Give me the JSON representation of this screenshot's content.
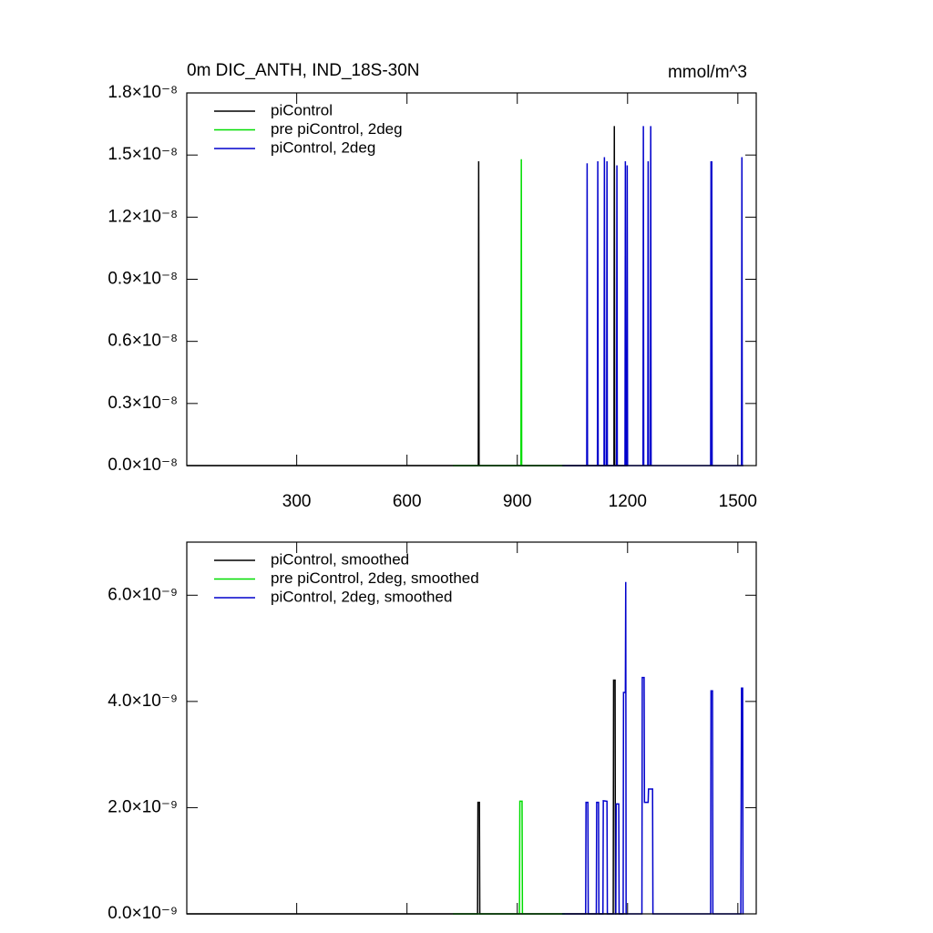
{
  "chart_data": [
    {
      "type": "line",
      "title": "0m DIC_ANTH, IND_18S-30N",
      "units": "mmol/m^3",
      "xlim": [
        1,
        1550
      ],
      "xticks": [
        300,
        600,
        900,
        1200,
        1500
      ],
      "ylim": [
        0,
        1.8e-08
      ],
      "yticks": [
        {
          "value": 0,
          "label": "0.0×10⁻⁸"
        },
        {
          "value": 3e-09,
          "label": "0.3×10⁻⁸"
        },
        {
          "value": 6e-09,
          "label": "0.6×10⁻⁸"
        },
        {
          "value": 9e-09,
          "label": "0.9×10⁻⁸"
        },
        {
          "value": 1.2e-08,
          "label": "1.2×10⁻⁸"
        },
        {
          "value": 1.5e-08,
          "label": "1.5×10⁻⁸"
        },
        {
          "value": 1.8e-08,
          "label": "1.8×10⁻⁸"
        }
      ],
      "series": [
        {
          "name": "piControl",
          "color": "#000000",
          "x": [
            1,
            794,
            795,
            796,
            1163,
            1164,
            1165,
            1200
          ],
          "values": [
            0,
            0,
            1.47e-08,
            0,
            0,
            1.64e-08,
            0,
            0
          ]
        },
        {
          "name": "pre piControl, 2deg",
          "color": "#00dd00",
          "x": [
            725,
            910,
            911,
            912,
            1030
          ],
          "values": [
            0,
            0,
            1.48e-08,
            0,
            0
          ]
        },
        {
          "name": "piControl, 2deg",
          "color": "#0000cc",
          "x": [
            1022,
            1089,
            1090,
            1091,
            1118,
            1119,
            1120,
            1136,
            1137,
            1138,
            1143,
            1144,
            1145,
            1170,
            1171,
            1172,
            1193,
            1194,
            1195,
            1198,
            1199,
            1200,
            1242,
            1243,
            1244,
            1255,
            1256,
            1257,
            1262,
            1263,
            1264,
            1426,
            1427,
            1428,
            1429,
            1430,
            1510,
            1511,
            1512,
            1515
          ],
          "values": [
            0,
            0,
            1.46e-08,
            0,
            0,
            1.47e-08,
            0,
            0,
            1.49e-08,
            0,
            0,
            1.47e-08,
            0,
            0,
            1.45e-08,
            0,
            0,
            1.47e-08,
            0,
            0,
            1.45e-08,
            0,
            0,
            1.64e-08,
            0,
            0,
            1.47e-08,
            0,
            0,
            1.64e-08,
            0,
            0,
            1.47e-08,
            0,
            1.47e-08,
            0,
            0,
            1.49e-08,
            0,
            0
          ]
        }
      ]
    },
    {
      "type": "line",
      "xlim": [
        1,
        1550
      ],
      "xticks": [
        300,
        600,
        900,
        1200,
        1500
      ],
      "ylim": [
        0,
        7e-09
      ],
      "yticks": [
        {
          "value": 0,
          "label": "0.0×10⁻⁹"
        },
        {
          "value": 2e-09,
          "label": "2.0×10⁻⁹"
        },
        {
          "value": 4e-09,
          "label": "4.0×10⁻⁹"
        },
        {
          "value": 6e-09,
          "label": "6.0×10⁻⁹"
        }
      ],
      "series": [
        {
          "name": "piControl, smoothed",
          "color": "#000000",
          "x": [
            1,
            792,
            793,
            797,
            798,
            1161,
            1162,
            1166,
            1167,
            1200
          ],
          "values": [
            0,
            0,
            2.1e-09,
            2.1e-09,
            0,
            0,
            4.4e-09,
            4.4e-09,
            0,
            0
          ]
        },
        {
          "name": "pre piControl, 2deg, smoothed",
          "color": "#00dd00",
          "x": [
            725,
            906,
            907,
            913,
            914,
            1030
          ],
          "values": [
            0,
            0,
            2.12e-09,
            2.12e-09,
            0,
            0
          ]
        },
        {
          "name": "piControl, 2deg, smoothed",
          "color": "#0000cc",
          "x": [
            1022,
            1086,
            1087,
            1092,
            1093,
            1115,
            1116,
            1121,
            1122,
            1133,
            1134,
            1144,
            1145,
            1168,
            1169,
            1176,
            1177,
            1188,
            1189,
            1194,
            1195,
            1196,
            1239,
            1240,
            1245,
            1246,
            1256,
            1257,
            1268,
            1269,
            1426,
            1427,
            1431,
            1432,
            1508,
            1509,
            1510,
            1513,
            1514,
            1515
          ],
          "values": [
            0,
            0,
            2.1e-09,
            2.1e-09,
            0,
            0,
            2.1e-09,
            2.1e-09,
            0,
            0,
            2.13e-09,
            2.12e-09,
            0,
            0,
            2.07e-09,
            2.07e-09,
            0,
            0,
            4.17e-09,
            4.17e-09,
            6.25e-09,
            0,
            0,
            4.45e-09,
            4.45e-09,
            2.1e-09,
            2.1e-09,
            2.35e-09,
            2.35e-09,
            0,
            0,
            4.2e-09,
            4.2e-09,
            0,
            0,
            2.1e-09,
            4.25e-09,
            4.25e-09,
            0,
            0
          ]
        }
      ]
    }
  ]
}
